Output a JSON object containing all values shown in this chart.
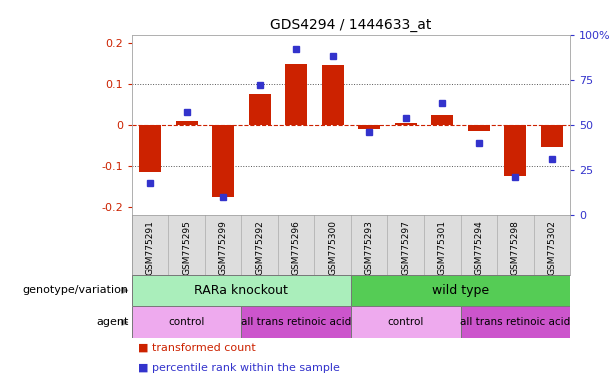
{
  "title": "GDS4294 / 1444633_at",
  "samples": [
    "GSM775291",
    "GSM775295",
    "GSM775299",
    "GSM775292",
    "GSM775296",
    "GSM775300",
    "GSM775293",
    "GSM775297",
    "GSM775301",
    "GSM775294",
    "GSM775298",
    "GSM775302"
  ],
  "bar_values": [
    -0.115,
    0.01,
    -0.175,
    0.075,
    0.148,
    0.145,
    -0.01,
    0.005,
    0.025,
    -0.015,
    -0.125,
    -0.055
  ],
  "dot_values": [
    0.18,
    0.57,
    0.1,
    0.72,
    0.92,
    0.88,
    0.46,
    0.54,
    0.62,
    0.4,
    0.21,
    0.31
  ],
  "bar_color": "#cc2200",
  "dot_color": "#3333cc",
  "ylim_left": [
    -0.22,
    0.22
  ],
  "ylim_right": [
    0.0,
    1.0
  ],
  "yticks_left": [
    -0.2,
    -0.1,
    0.0,
    0.1,
    0.2
  ],
  "yticks_right": [
    0.0,
    0.25,
    0.5,
    0.75,
    1.0
  ],
  "ytick_labels_right": [
    "0",
    "25",
    "50",
    "75",
    "100%"
  ],
  "ytick_labels_left": [
    "-0.2",
    "-0.1",
    "0",
    "0.1",
    "0.2"
  ],
  "zero_line_color": "#cc2200",
  "dotted_line_color": "#555555",
  "genotype_groups": [
    {
      "label": "RARa knockout",
      "start": 0,
      "end": 6,
      "color": "#aaeebb"
    },
    {
      "label": "wild type",
      "start": 6,
      "end": 12,
      "color": "#55cc55"
    }
  ],
  "agent_groups": [
    {
      "label": "control",
      "start": 0,
      "end": 3,
      "color": "#eeaaee"
    },
    {
      "label": "all trans retinoic acid",
      "start": 3,
      "end": 6,
      "color": "#cc55cc"
    },
    {
      "label": "control",
      "start": 6,
      "end": 9,
      "color": "#eeaaee"
    },
    {
      "label": "all trans retinoic acid",
      "start": 9,
      "end": 12,
      "color": "#cc55cc"
    }
  ],
  "legend_items": [
    {
      "label": "transformed count",
      "color": "#cc2200"
    },
    {
      "label": "percentile rank within the sample",
      "color": "#3333cc"
    }
  ],
  "label_genotype": "genotype/variation",
  "label_agent": "agent",
  "sample_box_color": "#dddddd",
  "background_color": "#ffffff"
}
